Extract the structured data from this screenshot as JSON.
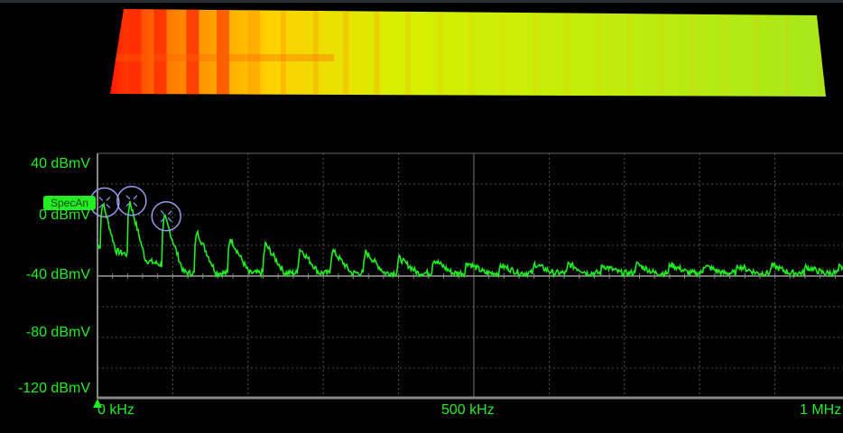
{
  "chart_data": {
    "type": "line",
    "title": "",
    "xlabel": "",
    "ylabel": "",
    "x_unit": "kHz",
    "y_unit": "dBmV",
    "xlim": [
      0,
      1000
    ],
    "ylim": [
      -120,
      40
    ],
    "x_tick_labels": [
      "0 kHz",
      "500 kHz",
      "1 MHz"
    ],
    "y_tick_labels": [
      "40 dBmV",
      "0 dBmV",
      "-40 dBmV",
      "-80 dBmV",
      "-120 dBmV"
    ],
    "grid": true,
    "channel_tag": "SpecAn",
    "trace_color": "#22ee22",
    "marker_color": "#9a9aee",
    "peaks": [
      [
        7,
        8
      ],
      [
        43,
        9
      ],
      [
        89,
        -1
      ],
      [
        132,
        -11
      ],
      [
        176,
        -15
      ],
      [
        223,
        -19
      ],
      [
        269,
        -22
      ],
      [
        312,
        -23
      ],
      [
        356,
        -24
      ],
      [
        400,
        -28
      ],
      [
        446,
        -29
      ],
      [
        490,
        -31
      ],
      [
        535,
        -33
      ],
      [
        580,
        -32
      ],
      [
        625,
        -32
      ],
      [
        670,
        -33
      ],
      [
        715,
        -32
      ],
      [
        760,
        -32
      ],
      [
        805,
        -33
      ],
      [
        850,
        -33
      ],
      [
        895,
        -33
      ],
      [
        940,
        -34
      ],
      [
        985,
        -34
      ]
    ],
    "noise_floor": -38,
    "peak_markers_kHz": [
      7,
      43,
      89
    ],
    "waterfall": {
      "colormap": [
        "#ff1a00",
        "#ff7a00",
        "#ffd000",
        "#e8f000",
        "#a8e81a"
      ]
    }
  }
}
